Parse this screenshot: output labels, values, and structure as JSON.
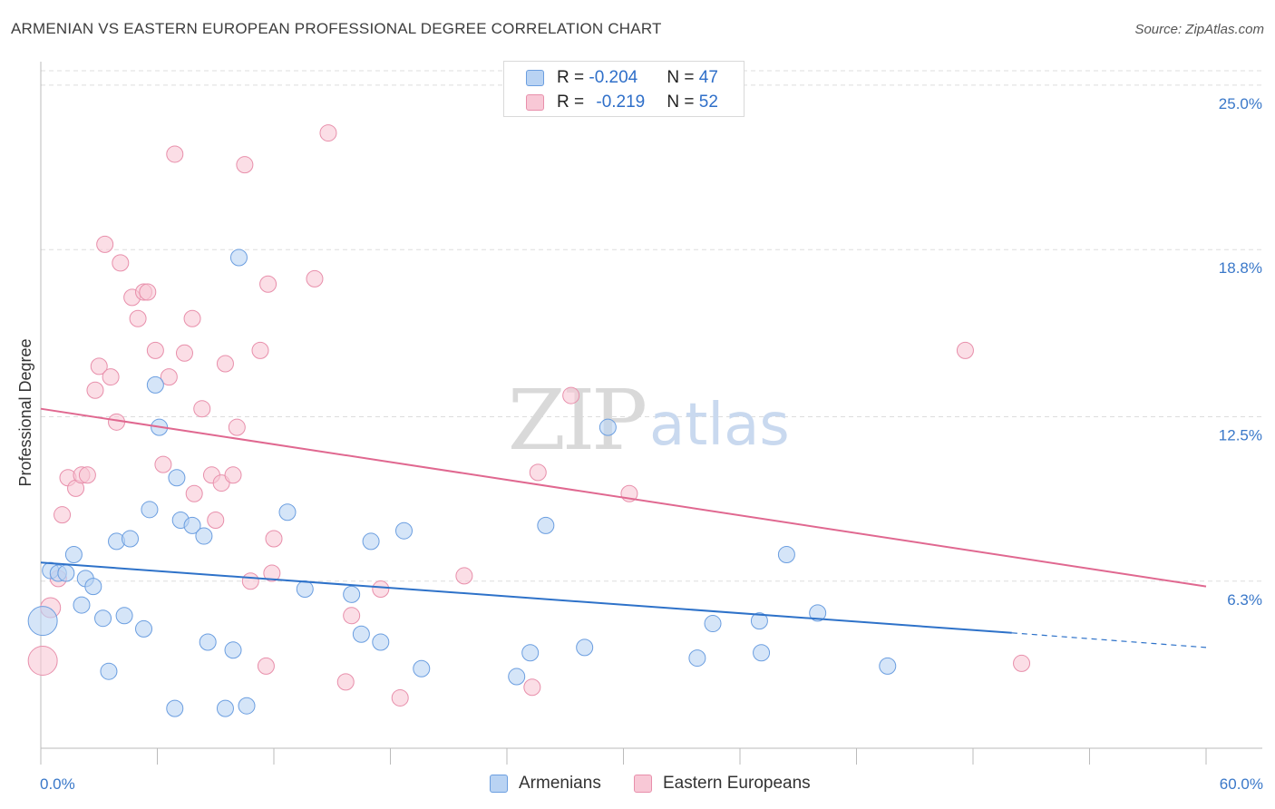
{
  "header": {
    "title": "ARMENIAN VS EASTERN EUROPEAN PROFESSIONAL DEGREE CORRELATION CHART",
    "source": "Source: ZipAtlas.com"
  },
  "watermark": {
    "zip": "ZIP",
    "atlas": "atlas"
  },
  "colors": {
    "armenian_fill": "#b9d3f3",
    "armenian_stroke": "#6b9ee0",
    "armenian_line": "#2e72c9",
    "eastern_fill": "#f8c8d6",
    "eastern_stroke": "#e88fab",
    "eastern_line": "#e06890",
    "axis_label": "#3a78c9",
    "grid": "#dddddd"
  },
  "legend": {
    "rows": [
      {
        "r_label": "R = ",
        "r_value": "-0.204",
        "n_label": "N = ",
        "n_value": "47"
      },
      {
        "r_label": "R = ",
        "r_value": "-0.219",
        "n_label": "N = ",
        "n_value": "52"
      }
    ]
  },
  "bottom_legend": {
    "armenians": "Armenians",
    "eastern": "Eastern Europeans"
  },
  "chart_data": {
    "type": "scatter",
    "title": "ARMENIAN VS EASTERN EUROPEAN PROFESSIONAL DEGREE CORRELATION CHART",
    "xlabel": "",
    "ylabel": "Professional Degree",
    "xlim": [
      0,
      60
    ],
    "ylim": [
      0,
      25.75
    ],
    "x_tick_labels": [
      "0.0%",
      "60.0%"
    ],
    "y_ticks": [
      6.3,
      12.5,
      18.8,
      25.0
    ],
    "y_tick_labels": [
      "6.3%",
      "12.5%",
      "18.8%",
      "25.0%"
    ],
    "grid": true,
    "legend_position": "top-center",
    "series": [
      {
        "name": "Armenians",
        "r": -0.204,
        "n": 47,
        "trend": {
          "x0": 0,
          "y0": 7.0,
          "x1": 50,
          "y1": 4.35,
          "dashed_to_x": 60,
          "dashed_y": 3.8
        },
        "points": [
          [
            0.1,
            4.8,
            16
          ],
          [
            0.5,
            6.7,
            9
          ],
          [
            0.9,
            6.6,
            9
          ],
          [
            1.3,
            6.6,
            9
          ],
          [
            1.7,
            7.3,
            9
          ],
          [
            2.1,
            5.4,
            9
          ],
          [
            2.3,
            6.4,
            9
          ],
          [
            2.7,
            6.1,
            9
          ],
          [
            3.2,
            4.9,
            9
          ],
          [
            3.5,
            2.9,
            9
          ],
          [
            3.9,
            7.8,
            9
          ],
          [
            4.3,
            5.0,
            9
          ],
          [
            4.6,
            7.9,
            9
          ],
          [
            5.3,
            4.5,
            9
          ],
          [
            5.6,
            9.0,
            9
          ],
          [
            5.9,
            13.7,
            9
          ],
          [
            6.1,
            12.1,
            9
          ],
          [
            6.9,
            1.5,
            9
          ],
          [
            7.0,
            10.2,
            9
          ],
          [
            7.2,
            8.6,
            9
          ],
          [
            7.8,
            8.4,
            9
          ],
          [
            8.4,
            8.0,
            9
          ],
          [
            8.6,
            4.0,
            9
          ],
          [
            9.5,
            1.5,
            9
          ],
          [
            9.9,
            3.7,
            9
          ],
          [
            10.2,
            18.5,
            9
          ],
          [
            10.6,
            1.6,
            9
          ],
          [
            12.7,
            8.9,
            9
          ],
          [
            13.6,
            6.0,
            9
          ],
          [
            16.0,
            5.8,
            9
          ],
          [
            16.5,
            4.3,
            9
          ],
          [
            17.0,
            7.8,
            9
          ],
          [
            17.5,
            4.0,
            9
          ],
          [
            18.7,
            8.2,
            9
          ],
          [
            19.6,
            3.0,
            9
          ],
          [
            24.5,
            2.7,
            9
          ],
          [
            25.2,
            3.6,
            9
          ],
          [
            26.0,
            8.4,
            9
          ],
          [
            28.0,
            3.8,
            9
          ],
          [
            29.2,
            12.1,
            9
          ],
          [
            33.8,
            3.4,
            9
          ],
          [
            34.6,
            4.7,
            9
          ],
          [
            37.0,
            4.8,
            9
          ],
          [
            37.1,
            3.6,
            9
          ],
          [
            38.4,
            7.3,
            9
          ],
          [
            40.0,
            5.1,
            9
          ],
          [
            43.6,
            3.1,
            9
          ]
        ]
      },
      {
        "name": "Eastern Europeans",
        "r": -0.219,
        "n": 52,
        "trend": {
          "x0": 0,
          "y0": 12.8,
          "x1": 60,
          "y1": 6.1
        },
        "points": [
          [
            0.1,
            3.3,
            16
          ],
          [
            0.5,
            5.3,
            11
          ],
          [
            0.9,
            6.4,
            9
          ],
          [
            1.1,
            8.8,
            9
          ],
          [
            1.4,
            10.2,
            9
          ],
          [
            1.8,
            9.8,
            9
          ],
          [
            2.1,
            10.3,
            9
          ],
          [
            2.4,
            10.3,
            9
          ],
          [
            2.8,
            13.5,
            9
          ],
          [
            3.0,
            14.4,
            9
          ],
          [
            3.3,
            19.0,
            9
          ],
          [
            3.6,
            14.0,
            9
          ],
          [
            3.9,
            12.3,
            9
          ],
          [
            4.1,
            18.3,
            9
          ],
          [
            4.7,
            17.0,
            9
          ],
          [
            5.0,
            16.2,
            9
          ],
          [
            5.3,
            17.2,
            9
          ],
          [
            5.5,
            17.2,
            9
          ],
          [
            5.9,
            15.0,
            9
          ],
          [
            6.3,
            10.7,
            9
          ],
          [
            6.6,
            14.0,
            9
          ],
          [
            6.9,
            22.4,
            9
          ],
          [
            7.4,
            14.9,
            9
          ],
          [
            7.8,
            16.2,
            9
          ],
          [
            7.9,
            9.6,
            9
          ],
          [
            8.3,
            12.8,
            9
          ],
          [
            8.8,
            10.3,
            9
          ],
          [
            9.0,
            8.6,
            9
          ],
          [
            9.3,
            10.0,
            9
          ],
          [
            9.5,
            14.5,
            9
          ],
          [
            9.9,
            10.3,
            9
          ],
          [
            10.1,
            12.1,
            9
          ],
          [
            10.5,
            22.0,
            9
          ],
          [
            10.8,
            6.3,
            9
          ],
          [
            11.3,
            15.0,
            9
          ],
          [
            11.6,
            3.1,
            9
          ],
          [
            11.7,
            17.5,
            9
          ],
          [
            11.9,
            6.6,
            9
          ],
          [
            12.0,
            7.9,
            9
          ],
          [
            14.1,
            17.7,
            9
          ],
          [
            14.8,
            23.2,
            9
          ],
          [
            15.7,
            2.5,
            9
          ],
          [
            16.0,
            5.0,
            9
          ],
          [
            17.5,
            6.0,
            9
          ],
          [
            18.5,
            1.9,
            9
          ],
          [
            21.8,
            6.5,
            9
          ],
          [
            25.3,
            2.3,
            9
          ],
          [
            25.6,
            10.4,
            9
          ],
          [
            27.3,
            13.3,
            9
          ],
          [
            30.3,
            9.6,
            9
          ],
          [
            47.6,
            15.0,
            9
          ],
          [
            50.5,
            3.2,
            9
          ]
        ]
      }
    ]
  }
}
